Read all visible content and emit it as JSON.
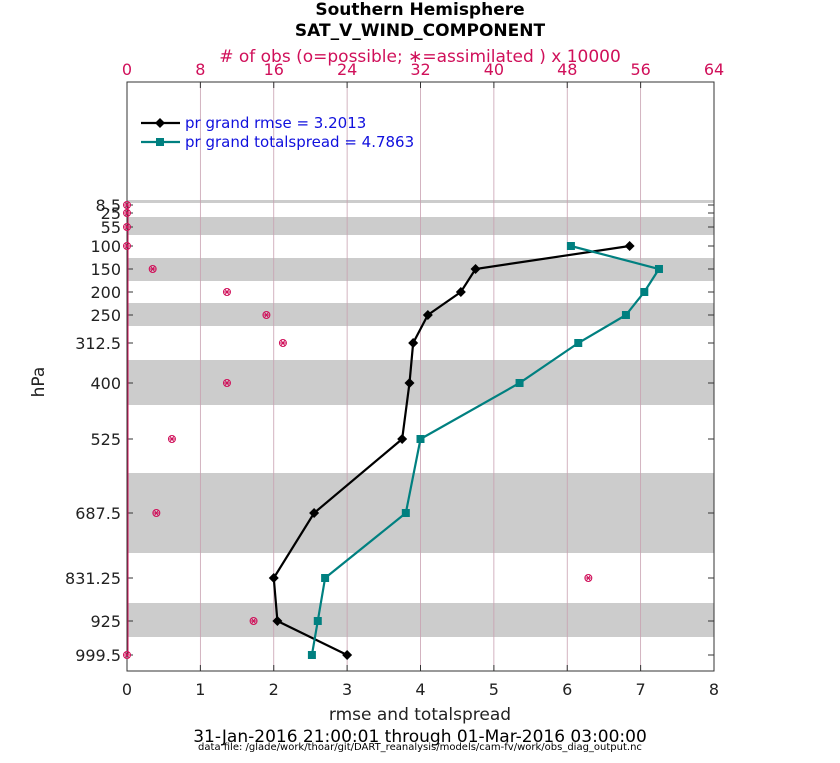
{
  "chart_data": {
    "type": "line",
    "title": "Southern Hemisphere",
    "subtitle": "SAT_V_WIND_COMPONENT",
    "top_axis_label": "# of obs (o=possible; ∗=assimilated ) x 10000",
    "xlabel": "rmse and totalspread",
    "ylabel": "hPa",
    "date_range": "31-Jan-2016 21:00:01 through 01-Mar-2016 03:00:00",
    "footer": "data file: /glade/work/thoar/git/DART_reanalysis/models/cam-fv/work/obs_diag_output.nc",
    "xlim": [
      0,
      8
    ],
    "x_ticks": [
      0,
      1,
      2,
      3,
      4,
      5,
      6,
      7,
      8
    ],
    "top_xlim": [
      0,
      64
    ],
    "top_ticks": [
      0,
      8,
      16,
      24,
      32,
      40,
      48,
      56,
      64
    ],
    "y_ticks": [
      "8.5",
      "25",
      "55",
      "100",
      "150",
      "200",
      "250",
      "312.5",
      "400",
      "525",
      "687.5",
      "831.25",
      "925",
      "999.5"
    ],
    "y_levels": [
      8.5,
      25,
      55,
      100,
      150,
      200,
      250,
      312.5,
      400,
      525,
      687.5,
      831.25,
      925,
      999.5
    ],
    "grid": true,
    "legend_position": "top-left",
    "series": [
      {
        "name": "pr grand rmse = 3.2013",
        "color": "#000000",
        "marker": "diamond",
        "points": [
          {
            "x": 6.85,
            "y": 100
          },
          {
            "x": 4.75,
            "y": 150
          },
          {
            "x": 4.55,
            "y": 200
          },
          {
            "x": 4.1,
            "y": 250
          },
          {
            "x": 3.9,
            "y": 312.5
          },
          {
            "x": 3.85,
            "y": 400
          },
          {
            "x": 3.75,
            "y": 525
          },
          {
            "x": 2.55,
            "y": 687.5
          },
          {
            "x": 2.0,
            "y": 831.25
          },
          {
            "x": 2.05,
            "y": 925
          },
          {
            "x": 3.0,
            "y": 999.5
          }
        ]
      },
      {
        "name": "pr grand totalspread = 4.7863",
        "color": "#008080",
        "marker": "square",
        "points": [
          {
            "x": 6.05,
            "y": 100
          },
          {
            "x": 7.25,
            "y": 150
          },
          {
            "x": 7.05,
            "y": 200
          },
          {
            "x": 6.8,
            "y": 250
          },
          {
            "x": 6.15,
            "y": 312.5
          },
          {
            "x": 5.35,
            "y": 400
          },
          {
            "x": 4.0,
            "y": 525
          },
          {
            "x": 3.8,
            "y": 687.5
          },
          {
            "x": 2.7,
            "y": 831.25
          },
          {
            "x": 2.6,
            "y": 925
          },
          {
            "x": 2.52,
            "y": 999.5
          }
        ]
      }
    ],
    "obs_counts": [
      {
        "y": 8.5,
        "count": 0.0
      },
      {
        "y": 25,
        "count": 0.0
      },
      {
        "y": 55,
        "count": 0.0
      },
      {
        "y": 100,
        "count": 0.0
      },
      {
        "y": 150,
        "count": 2.8
      },
      {
        "y": 200,
        "count": 10.9
      },
      {
        "y": 250,
        "count": 15.2
      },
      {
        "y": 312.5,
        "count": 17.0
      },
      {
        "y": 400,
        "count": 10.9
      },
      {
        "y": 525,
        "count": 4.9
      },
      {
        "y": 687.5,
        "count": 3.2
      },
      {
        "y": 831.25,
        "count": 50.3
      },
      {
        "y": 925,
        "count": 13.8
      },
      {
        "y": 999.5,
        "count": 0.0
      }
    ],
    "colors": {
      "obs_marker": "#d0105a",
      "top_axis": "#d0105a",
      "legend_text": "#1010dd",
      "band_fill": "#cccccc"
    }
  }
}
